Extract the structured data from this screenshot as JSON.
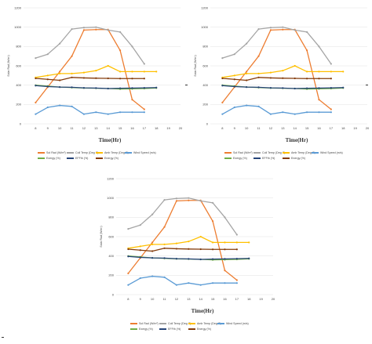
{
  "chart_data": [
    {
      "type": "line",
      "xlabel": "Time(Hr)",
      "ylabel": "Solar Rad (W/m²)",
      "xlim": [
        7,
        20
      ],
      "ylim": [
        0,
        1200
      ],
      "xticks": [
        8,
        9,
        10,
        11,
        12,
        13,
        14,
        15,
        16,
        17,
        18,
        19,
        20
      ],
      "yticks": [
        0,
        200,
        400,
        600,
        800,
        1000,
        1200
      ],
      "grid": "horizontal",
      "legend": "bottom",
      "series": [
        {
          "name": "Sol Rad (W/m²)",
          "color": "#ED7D31",
          "x": [
            8,
            9,
            10,
            11,
            12,
            13,
            14,
            15,
            16,
            17
          ],
          "values": [
            220,
            380,
            540,
            700,
            970,
            975,
            975,
            760,
            250,
            150
          ]
        },
        {
          "name": "Coll Temp (Deg C)",
          "color": "#A5A5A5",
          "x": [
            8,
            9,
            10,
            11,
            12,
            13,
            14,
            15,
            16,
            17
          ],
          "values": [
            680,
            720,
            830,
            980,
            995,
            1000,
            970,
            950,
            800,
            620
          ]
        },
        {
          "name": "Amb Temp (Deg C)",
          "color": "#FFC000",
          "x": [
            8,
            9,
            10,
            11,
            12,
            13,
            14,
            15,
            16,
            17,
            18
          ],
          "values": [
            480,
            500,
            520,
            520,
            530,
            550,
            600,
            540,
            540,
            540,
            540
          ]
        },
        {
          "name": "Wind Speed (m/s)",
          "color": "#5B9BD5",
          "x": [
            8,
            9,
            10,
            11,
            12,
            13,
            14,
            15,
            16,
            17
          ],
          "values": [
            100,
            170,
            190,
            180,
            100,
            120,
            100,
            120,
            120,
            120
          ]
        },
        {
          "name": "Exergy (%)",
          "color": "#70AD47",
          "x": [
            8,
            9,
            10,
            11,
            12,
            13,
            14,
            15,
            16,
            17,
            18
          ],
          "values": [
            400,
            390,
            380,
            375,
            370,
            368,
            365,
            360,
            362,
            365,
            370
          ]
        },
        {
          "name": "EFFth (%)",
          "color": "#264478",
          "x": [
            8,
            9,
            10,
            11,
            12,
            13,
            14,
            15,
            16,
            17,
            18
          ],
          "values": [
            395,
            385,
            380,
            378,
            372,
            370,
            365,
            368,
            370,
            372,
            375
          ]
        },
        {
          "name": "Energy (%)",
          "color": "#843C0C",
          "x": [
            8,
            9,
            10,
            11,
            12,
            13,
            14,
            15,
            16,
            17
          ],
          "values": [
            470,
            460,
            450,
            480,
            475,
            472,
            470,
            468,
            468,
            468
          ]
        }
      ]
    },
    {
      "type": "line",
      "xlabel": "Time(Hr)",
      "ylabel": "Solar Rad (W/m²)",
      "xlim": [
        7,
        20
      ],
      "ylim": [
        0,
        1200
      ],
      "xticks": [
        8,
        9,
        10,
        11,
        12,
        13,
        14,
        15,
        16,
        17,
        18,
        19,
        20
      ],
      "yticks": [
        0,
        200,
        400,
        600,
        800,
        1000,
        1200
      ],
      "grid": "horizontal",
      "legend": "bottom",
      "series": [
        {
          "name": "Sol Rad (W/m²)",
          "color": "#ED7D31",
          "x": [
            8,
            9,
            10,
            11,
            12,
            13,
            14,
            15,
            16,
            17
          ],
          "values": [
            220,
            380,
            540,
            700,
            970,
            975,
            975,
            760,
            250,
            150
          ]
        },
        {
          "name": "Coll Temp (Deg C)",
          "color": "#A5A5A5",
          "x": [
            8,
            9,
            10,
            11,
            12,
            13,
            14,
            15,
            16,
            17
          ],
          "values": [
            680,
            720,
            830,
            980,
            995,
            1000,
            970,
            950,
            800,
            620
          ]
        },
        {
          "name": "Amb Temp (Deg C)",
          "color": "#FFC000",
          "x": [
            8,
            9,
            10,
            11,
            12,
            13,
            14,
            15,
            16,
            17,
            18
          ],
          "values": [
            480,
            500,
            520,
            520,
            530,
            550,
            600,
            540,
            540,
            540,
            540
          ]
        },
        {
          "name": "Wind Speed (m/s)",
          "color": "#5B9BD5",
          "x": [
            8,
            9,
            10,
            11,
            12,
            13,
            14,
            15,
            16,
            17
          ],
          "values": [
            100,
            170,
            190,
            180,
            100,
            120,
            100,
            120,
            120,
            120
          ]
        },
        {
          "name": "Exergy (%)",
          "color": "#70AD47",
          "x": [
            8,
            9,
            10,
            11,
            12,
            13,
            14,
            15,
            16,
            17,
            18
          ],
          "values": [
            400,
            390,
            380,
            375,
            370,
            368,
            365,
            360,
            362,
            365,
            370
          ]
        },
        {
          "name": "EFFth (%)",
          "color": "#264478",
          "x": [
            8,
            9,
            10,
            11,
            12,
            13,
            14,
            15,
            16,
            17,
            18
          ],
          "values": [
            395,
            385,
            380,
            378,
            372,
            370,
            365,
            368,
            370,
            372,
            375
          ]
        },
        {
          "name": "Energy (%)",
          "color": "#843C0C",
          "x": [
            8,
            9,
            10,
            11,
            12,
            13,
            14,
            15,
            16,
            17
          ],
          "values": [
            470,
            460,
            450,
            480,
            475,
            472,
            470,
            468,
            468,
            468
          ]
        }
      ]
    },
    {
      "type": "line",
      "xlabel": "Time(Hr)",
      "ylabel": "Solar Rad (W/m²)",
      "xlim": [
        7,
        20
      ],
      "ylim": [
        0,
        1200
      ],
      "xticks": [
        8,
        9,
        10,
        11,
        12,
        13,
        14,
        15,
        16,
        17,
        18,
        19,
        20
      ],
      "yticks": [
        0,
        200,
        400,
        600,
        800,
        1000,
        1200
      ],
      "grid": "horizontal",
      "legend": "bottom",
      "series": [
        {
          "name": "Sol Rad (W/m²)",
          "color": "#ED7D31",
          "x": [
            8,
            9,
            10,
            11,
            12,
            13,
            14,
            15,
            16,
            17
          ],
          "values": [
            220,
            380,
            540,
            700,
            970,
            975,
            975,
            760,
            250,
            150
          ]
        },
        {
          "name": "Coll Temp (Deg C)",
          "color": "#A5A5A5",
          "x": [
            8,
            9,
            10,
            11,
            12,
            13,
            14,
            15,
            16,
            17
          ],
          "values": [
            680,
            720,
            830,
            980,
            995,
            1000,
            970,
            950,
            800,
            620
          ]
        },
        {
          "name": "Amb Temp (Deg C)",
          "color": "#FFC000",
          "x": [
            8,
            9,
            10,
            11,
            12,
            13,
            14,
            15,
            16,
            17,
            18
          ],
          "values": [
            480,
            500,
            520,
            520,
            530,
            550,
            600,
            540,
            540,
            540,
            540
          ]
        },
        {
          "name": "Wind Speed (m/s)",
          "color": "#5B9BD5",
          "x": [
            8,
            9,
            10,
            11,
            12,
            13,
            14,
            15,
            16,
            17
          ],
          "values": [
            100,
            170,
            190,
            180,
            100,
            120,
            100,
            120,
            120,
            120
          ]
        },
        {
          "name": "Exergy (%)",
          "color": "#70AD47",
          "x": [
            8,
            9,
            10,
            11,
            12,
            13,
            14,
            15,
            16,
            17,
            18
          ],
          "values": [
            400,
            390,
            380,
            375,
            370,
            368,
            365,
            360,
            362,
            365,
            370
          ]
        },
        {
          "name": "EFFth (%)",
          "color": "#264478",
          "x": [
            8,
            9,
            10,
            11,
            12,
            13,
            14,
            15,
            16,
            17,
            18
          ],
          "values": [
            395,
            385,
            380,
            378,
            372,
            370,
            365,
            368,
            370,
            372,
            375
          ]
        },
        {
          "name": "Energy (%)",
          "color": "#843C0C",
          "x": [
            8,
            9,
            10,
            11,
            12,
            13,
            14,
            15,
            16,
            17
          ],
          "values": [
            470,
            460,
            450,
            480,
            475,
            472,
            470,
            468,
            468,
            468
          ]
        }
      ]
    }
  ]
}
